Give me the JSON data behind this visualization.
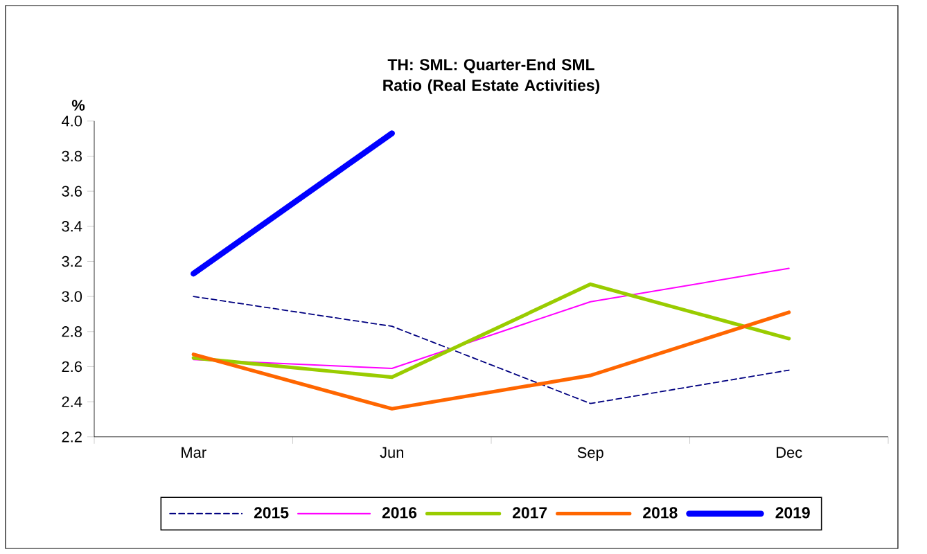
{
  "chart_data": {
    "type": "line",
    "title": "TH: SML: Quarter-End SML Ratio (Real Estate Activities)",
    "ylabel": "%",
    "categories": [
      "Mar",
      "Jun",
      "Sep",
      "Dec"
    ],
    "ylim": [
      2.2,
      4.0
    ],
    "yticks": [
      {
        "value": 2.2,
        "label": "2.2"
      },
      {
        "value": 2.4,
        "label": "2.4"
      },
      {
        "value": 2.6,
        "label": "2.6"
      },
      {
        "value": 2.8,
        "label": "2.8"
      },
      {
        "value": 3.0,
        "label": "3.0"
      },
      {
        "value": 3.2,
        "label": "3.2"
      },
      {
        "value": 3.4,
        "label": "3.4"
      },
      {
        "value": 3.6,
        "label": "3.6"
      },
      {
        "value": 3.8,
        "label": "3.8"
      },
      {
        "value": 4.0,
        "label": "4.0"
      }
    ],
    "grid": false,
    "legend": "bottom",
    "marker": "none",
    "series": [
      {
        "name": "2015",
        "color": "#000080",
        "line_style": "dashed",
        "values": [
          3.0,
          2.83,
          2.39,
          2.58
        ]
      },
      {
        "name": "2016",
        "color": "#ff00ff",
        "values": [
          2.64,
          2.59,
          2.97,
          3.16
        ]
      },
      {
        "name": "2017",
        "color": "#99cc00",
        "values": [
          2.65,
          2.54,
          3.07,
          2.76
        ]
      },
      {
        "name": "2018",
        "color": "#ff6600",
        "values": [
          2.67,
          2.36,
          2.55,
          2.91
        ]
      },
      {
        "name": "2019",
        "color": "#0000ff",
        "values": [
          3.13,
          3.93,
          null,
          null
        ]
      }
    ]
  }
}
